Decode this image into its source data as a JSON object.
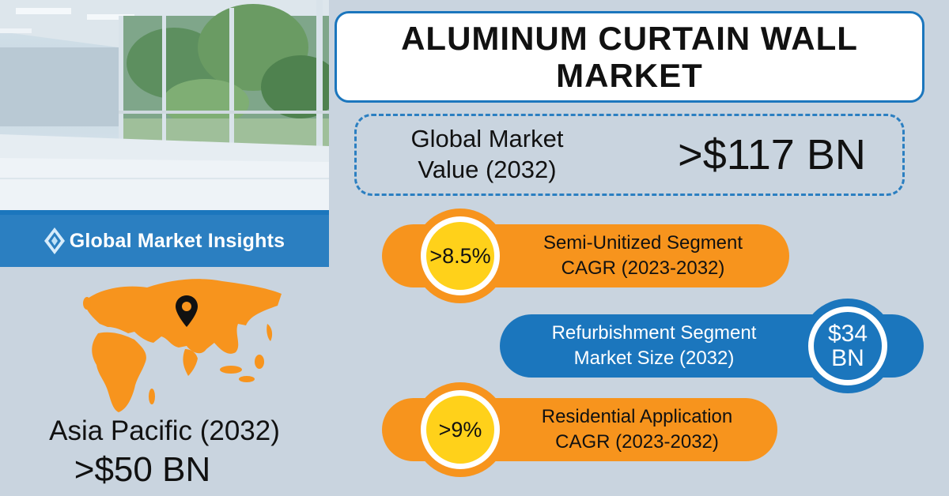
{
  "brand": {
    "name": "Global Market Insights",
    "color": "#2b7fc1",
    "icon": "diamond-logo-icon"
  },
  "title": {
    "line1": "ALUMINUM CURTAIN WALL",
    "line2": "MARKET"
  },
  "global_value": {
    "label_line1": "Global Market",
    "label_line2": "Value (2032)",
    "value": ">$117 BN"
  },
  "stats": [
    {
      "badge": ">8.5%",
      "line1": "Semi-Unitized Segment",
      "line2": "CAGR (2023-2032)",
      "color": "#f7941d"
    },
    {
      "badge_line1": "$34",
      "badge_line2": "BN",
      "line1": "Refurbishment Segment",
      "line2": "Market Size (2032)",
      "color": "#1b76bd"
    },
    {
      "badge": ">9%",
      "line1": "Residential Application",
      "line2": "CAGR (2023-2032)",
      "color": "#f7941d"
    }
  ],
  "region": {
    "title": "Asia Pacific (2032)",
    "value": ">$50 BN",
    "map_color": "#f7941d",
    "icon": "location-pin-icon"
  },
  "colors": {
    "background": "#c9d4df",
    "accent_blue": "#1b76bd",
    "accent_orange": "#f7941d",
    "badge_yellow": "#ffd11a"
  }
}
